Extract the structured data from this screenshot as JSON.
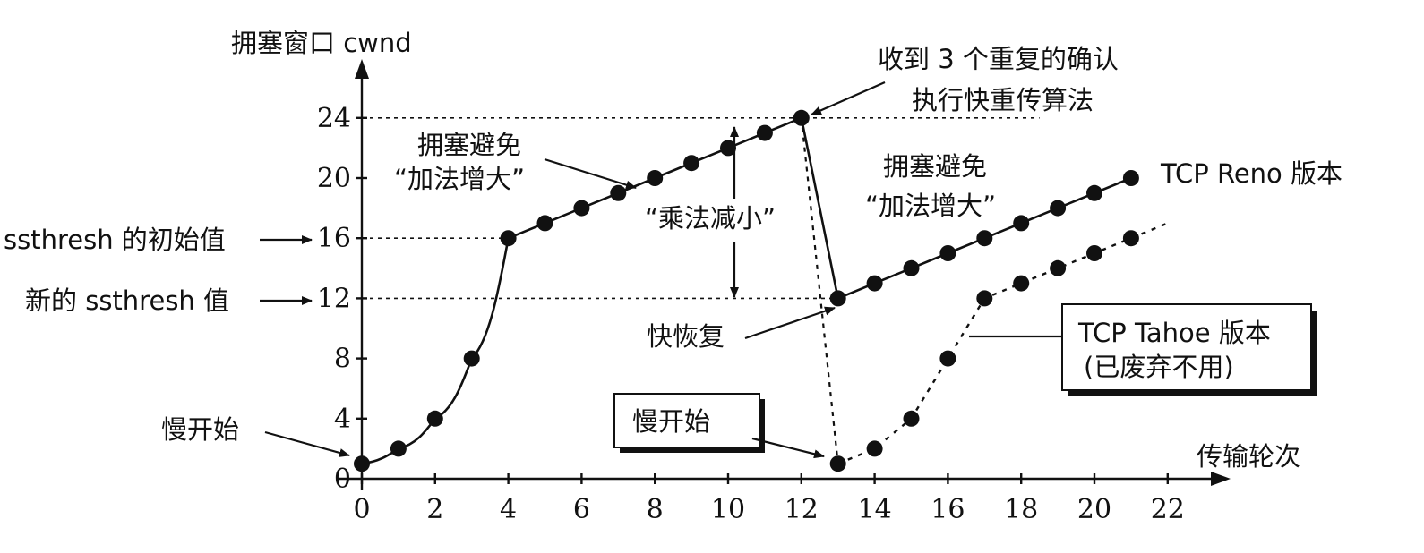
{
  "chart_data": {
    "type": "line",
    "title": "",
    "xlabel": "传输轮次",
    "ylabel": "拥塞窗口 cwnd",
    "xlim": [
      0,
      23
    ],
    "ylim": [
      0,
      26
    ],
    "x_ticks": [
      "0",
      "2",
      "4",
      "6",
      "8",
      "10",
      "12",
      "14",
      "16",
      "18",
      "20",
      "22"
    ],
    "y_ticks": [
      "0",
      "4",
      "8",
      "12",
      "16",
      "20",
      "24"
    ],
    "reference_lines": [
      {
        "y": 24,
        "x_from": 0,
        "x_to": 18.5
      },
      {
        "y": 16,
        "x_from": 0,
        "x_to": 4
      },
      {
        "y": 12,
        "x_from": 0,
        "x_to": 13
      }
    ],
    "series": [
      {
        "name": "TCP Reno 版本",
        "points": [
          [
            0,
            1
          ],
          [
            1,
            2
          ],
          [
            2,
            4
          ],
          [
            3,
            8
          ],
          [
            4,
            16
          ],
          [
            5,
            17
          ],
          [
            6,
            18
          ],
          [
            7,
            19
          ],
          [
            8,
            20
          ],
          [
            9,
            21
          ],
          [
            10,
            22
          ],
          [
            11,
            23
          ],
          [
            12,
            24
          ],
          [
            13,
            12
          ],
          [
            14,
            13
          ],
          [
            15,
            14
          ],
          [
            16,
            15
          ],
          [
            17,
            16
          ],
          [
            18,
            17
          ],
          [
            19,
            18
          ],
          [
            20,
            19
          ],
          [
            21,
            20
          ]
        ]
      },
      {
        "name": "TCP Tahoe 版本",
        "points": [
          [
            12,
            24
          ],
          [
            13,
            1
          ],
          [
            14,
            2
          ],
          [
            15,
            4
          ],
          [
            16,
            8
          ],
          [
            17,
            12
          ],
          [
            18,
            13
          ],
          [
            19,
            14
          ],
          [
            20,
            15
          ],
          [
            21,
            16
          ],
          [
            22,
            17
          ]
        ]
      }
    ],
    "annotations": {
      "ssthresh_initial": "ssthresh 的初始值",
      "ssthresh_new": "新的 ssthresh 值",
      "slow_start_1": "慢开始",
      "slow_start_2": "慢开始",
      "cong_avoid_1_line1": "拥塞避免",
      "cong_avoid_1_line2": "“加法增大”",
      "cong_avoid_2_line1": "拥塞避免",
      "cong_avoid_2_line2": "“加法增大”",
      "mult_decrease": "“乘法减小”",
      "fast_retx_line1": "收到 3 个重复的确认",
      "fast_retx_line2": "执行快重传算法",
      "fast_recovery": "快恢复",
      "reno_label": "TCP Reno 版本",
      "tahoe_label_line1": "TCP Tahoe 版本",
      "tahoe_label_line2": "(已废弃不用)"
    }
  }
}
